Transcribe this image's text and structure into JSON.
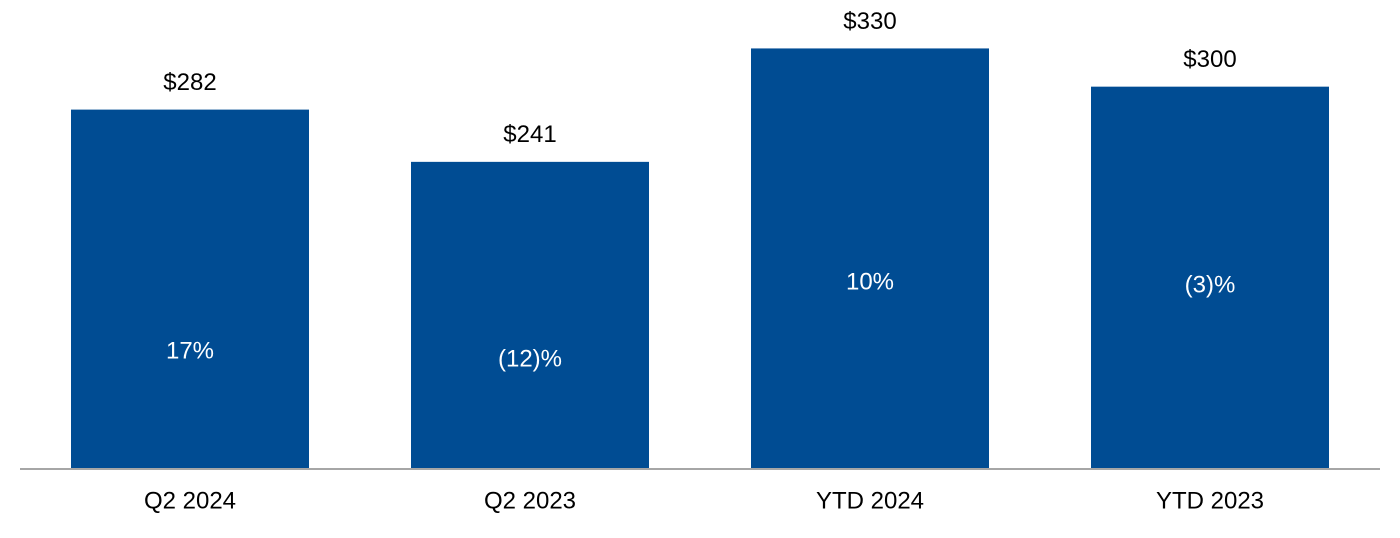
{
  "chart_data": {
    "type": "bar",
    "categories": [
      "Q2 2024",
      "Q2 2023",
      "YTD 2024",
      "YTD 2023"
    ],
    "values": [
      282,
      241,
      330,
      300
    ],
    "value_labels": [
      "$282",
      "$241",
      "$330",
      "$300"
    ],
    "bar_annotations": [
      "17%",
      "(12)%",
      "10%",
      "(3)%"
    ],
    "color": "#004c93",
    "ylim": [
      0,
      368
    ]
  }
}
